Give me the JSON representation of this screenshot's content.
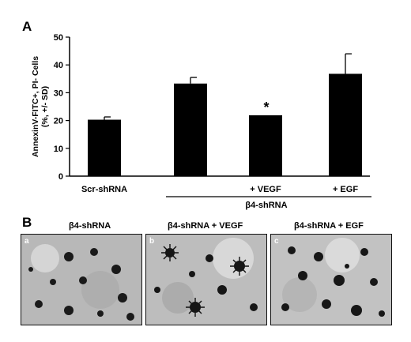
{
  "panel_a": {
    "letter": "A"
  },
  "panel_b": {
    "letter": "B",
    "images": [
      {
        "title": "β4-shRNA",
        "letter": "a"
      },
      {
        "title": "β4-shRNA + VEGF",
        "letter": "b"
      },
      {
        "title": "β4-shRNA + EGF",
        "letter": "c"
      }
    ]
  },
  "chart_data": {
    "type": "bar",
    "ylabel": "AnnexinV-FITC+, PI- Cells (%, +/- SD)",
    "ylabel_lines": [
      "AnnexinV-FITC+, PI- Cells",
      "(%, +/- SD)"
    ],
    "ylim": [
      0,
      50
    ],
    "yticks": [
      "0",
      "10",
      "20",
      "30",
      "40",
      "50"
    ],
    "categories": [
      "Scr-shRNA",
      "",
      "+ VEGF",
      "+ EGF"
    ],
    "values": [
      20.3,
      33.3,
      21.9,
      36.8
    ],
    "errors": [
      1.0,
      2.2,
      0,
      7.2
    ],
    "group_label": "β4-shRNA",
    "annotations": [
      {
        "category_index": 2,
        "text": "*"
      }
    ],
    "colors": {
      "bar": "#000000"
    },
    "grid": false
  }
}
